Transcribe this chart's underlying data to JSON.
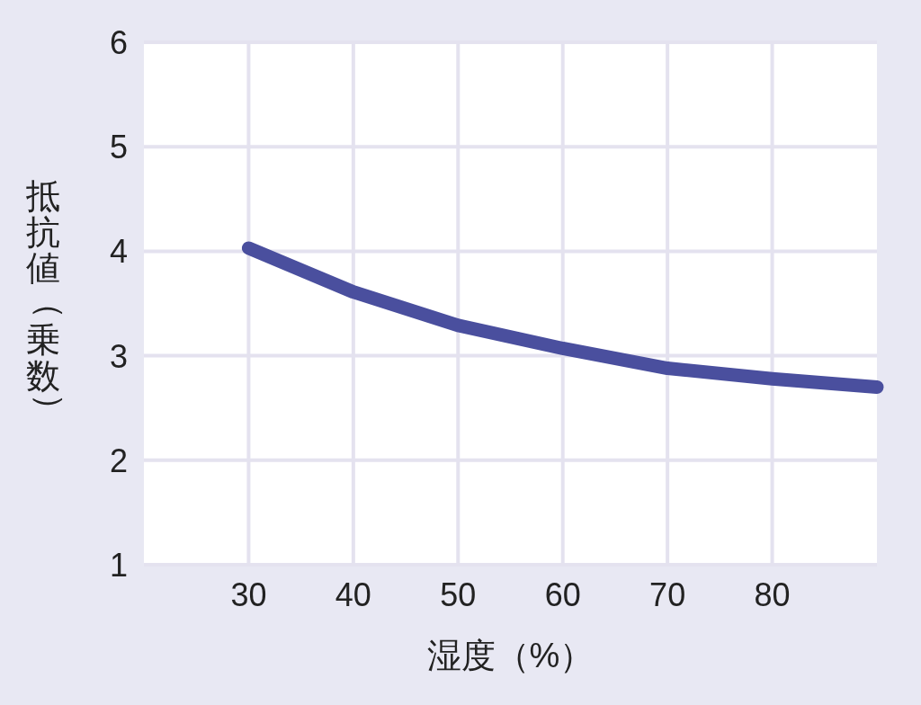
{
  "chart_data": {
    "type": "line",
    "xlabel": "湿度（%）",
    "ylabel": "抵抗値（乗数）",
    "x": [
      30,
      40,
      50,
      60,
      70,
      80,
      90
    ],
    "series": [
      {
        "color": "#4a4f9e",
        "values": [
          4.03,
          3.61,
          3.29,
          3.07,
          2.88,
          2.78,
          2.7
        ]
      }
    ],
    "xlim": [
      20,
      90
    ],
    "xticks": [
      30,
      40,
      50,
      60,
      70,
      80
    ],
    "ylim": [
      1,
      6
    ],
    "yticks": [
      1,
      2,
      3,
      4,
      5,
      6
    ],
    "grid": true,
    "marker": "none",
    "line_style": "solid"
  }
}
